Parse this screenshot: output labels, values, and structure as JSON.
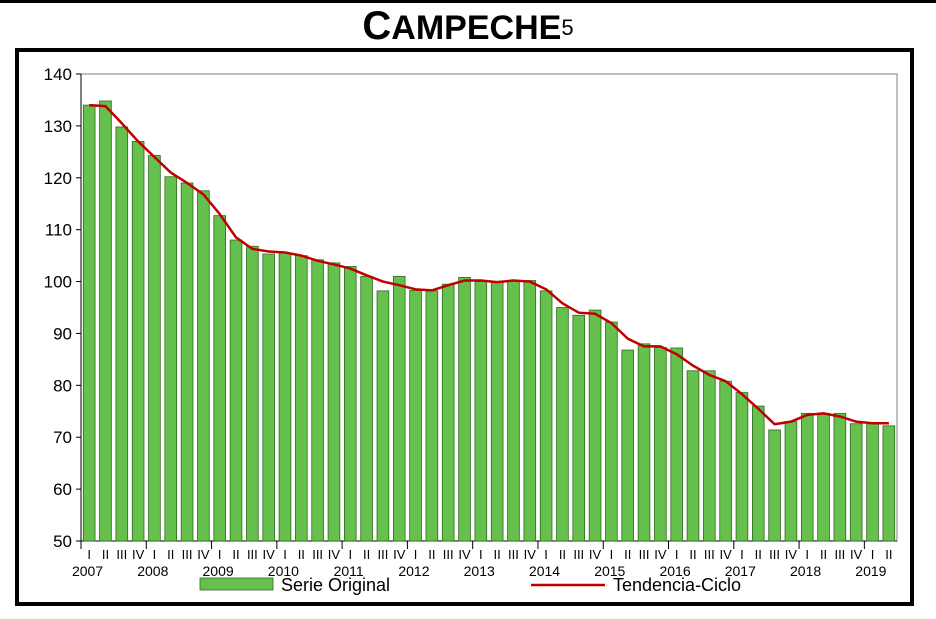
{
  "title": {
    "main": "CAMPECHE",
    "superscript": "5"
  },
  "chart_data": {
    "type": "bar",
    "title": "CAMPECHE5",
    "xlabel": "",
    "ylabel": "",
    "ylim": [
      50,
      140
    ],
    "yticks": [
      50,
      60,
      70,
      80,
      90,
      100,
      110,
      120,
      130,
      140
    ],
    "grid": false,
    "legend_position": "bottom",
    "quarter_labels": [
      "I",
      "II",
      "III",
      "IV"
    ],
    "years": [
      "2007",
      "2008",
      "2009",
      "2010",
      "2011",
      "2012",
      "2013",
      "2014",
      "2015",
      "2016",
      "2017",
      "2018",
      "2019"
    ],
    "categories": [
      "2007 I",
      "2007 II",
      "2007 III",
      "2007 IV",
      "2008 I",
      "2008 II",
      "2008 III",
      "2008 IV",
      "2009 I",
      "2009 II",
      "2009 III",
      "2009 IV",
      "2010 I",
      "2010 II",
      "2010 III",
      "2010 IV",
      "2011 I",
      "2011 II",
      "2011 III",
      "2011 IV",
      "2012 I",
      "2012 II",
      "2012 III",
      "2012 IV",
      "2013 I",
      "2013 II",
      "2013 III",
      "2013 IV",
      "2014 I",
      "2014 II",
      "2014 III",
      "2014 IV",
      "2015 I",
      "2015 II",
      "2015 III",
      "2015 IV",
      "2016 I",
      "2016 II",
      "2016 III",
      "2016 IV",
      "2017 I",
      "2017 II",
      "2017 III",
      "2017 IV",
      "2018 I",
      "2018 II",
      "2018 III",
      "2018 IV",
      "2019 I",
      "2019 II"
    ],
    "series": [
      {
        "name": "Serie Original",
        "kind": "bar",
        "color": "#66c04d",
        "values": [
          134.0,
          134.8,
          129.8,
          127.0,
          124.3,
          120.2,
          119.0,
          117.5,
          112.7,
          108.0,
          106.8,
          105.3,
          105.5,
          105.0,
          104.2,
          103.6,
          102.9,
          101.0,
          98.2,
          101.0,
          98.3,
          98.2,
          99.5,
          100.8,
          100.0,
          99.8,
          100.2,
          100.2,
          98.2,
          95.0,
          93.5,
          94.5,
          92.2,
          86.8,
          88.0,
          87.3,
          87.2,
          82.8,
          82.8,
          80.8,
          78.6,
          76.0,
          71.4,
          73.0,
          74.6,
          74.6,
          74.6,
          72.6,
          72.6,
          72.2
        ]
      },
      {
        "name": "Tendencia-Ciclo",
        "kind": "line",
        "color": "#c00000",
        "values": [
          134.0,
          133.8,
          130.5,
          127.0,
          124.0,
          121.0,
          119.0,
          116.8,
          113.0,
          108.5,
          106.3,
          105.8,
          105.6,
          105.0,
          104.0,
          103.3,
          102.5,
          101.2,
          100.0,
          99.3,
          98.5,
          98.3,
          99.3,
          100.2,
          100.2,
          99.9,
          100.2,
          100.0,
          98.5,
          95.8,
          94.0,
          93.8,
          92.0,
          89.0,
          87.5,
          87.5,
          86.0,
          83.8,
          82.0,
          80.8,
          78.3,
          75.5,
          72.5,
          73.0,
          74.3,
          74.6,
          74.0,
          73.0,
          72.7,
          72.7
        ]
      }
    ]
  }
}
